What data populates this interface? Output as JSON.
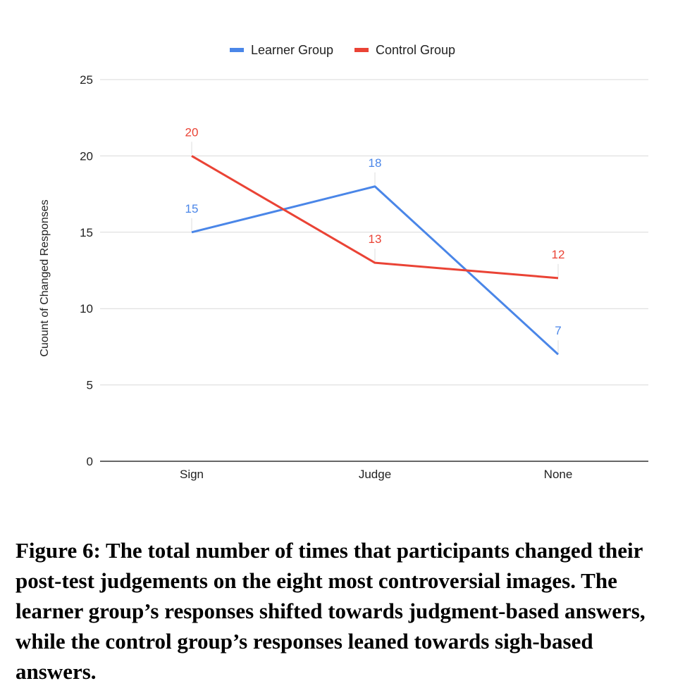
{
  "chart_data": {
    "type": "line",
    "categories": [
      "Sign",
      "Judge",
      "None"
    ],
    "series": [
      {
        "name": "Learner Group",
        "values": [
          15,
          18,
          7
        ],
        "color": "#4a86e8"
      },
      {
        "name": "Control Group",
        "values": [
          20,
          13,
          12
        ],
        "color": "#ea4335"
      }
    ],
    "ylabel": "Cuount of Changed Responses",
    "xlabel": "",
    "ylim": [
      0,
      25
    ],
    "yticks": [
      0,
      5,
      10,
      15,
      20,
      25
    ],
    "grid": true,
    "legend": "top-center",
    "data_labels": true
  },
  "caption": "Figure 6: The total number of times that participants changed their post-test judgements on the eight most controversial images. The learner group’s responses shifted towards judgment-based answers, while the control group’s responses leaned towards sigh-based answers."
}
